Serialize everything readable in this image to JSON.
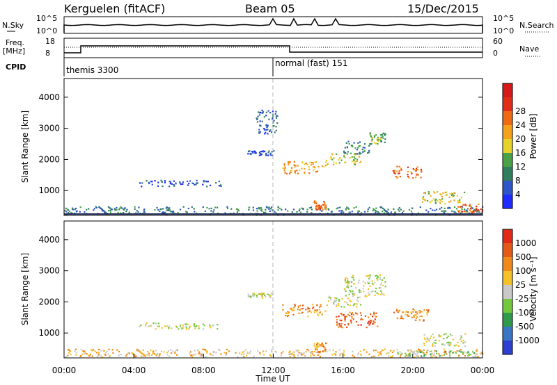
{
  "title": {
    "station": "Kerguelen (fitACF)",
    "beam": "Beam 05",
    "date": "15/Dec/2015"
  },
  "top_panels": {
    "nsky_label": "N.Sky",
    "nsearch_label": "N.Search",
    "nsky_ticks": [
      "10^5",
      "10^0"
    ],
    "nsearch_ticks": [
      "10^5",
      "10^0"
    ],
    "freq_label": "Freq.",
    "freq_unit": "[MHz]",
    "freq_ticks": [
      "18",
      "8"
    ],
    "nave_label": "Nave",
    "nave_ticks": [
      "60",
      "0"
    ],
    "cpid_label": "CPID",
    "cpid_segments": [
      {
        "label": "themis 3300",
        "start_hour": 0,
        "end_hour": 12
      },
      {
        "label": "normal (fast) 151",
        "start_hour": 12,
        "end_hour": 24
      }
    ]
  },
  "chart_data": [
    {
      "type": "heatmap",
      "name": "power",
      "ylabel": "Slant Range [km]",
      "xlim": [
        0,
        24
      ],
      "ylim": [
        200,
        4600
      ],
      "yticks": [
        "1000",
        "2000",
        "3000",
        "4000"
      ],
      "colorbar": {
        "label": "Power [dB]",
        "ticks": [
          "4",
          "8",
          "12",
          "16",
          "20",
          "24",
          "28"
        ],
        "colors": [
          "#1f2cff",
          "#2f56c8",
          "#2f7f5f",
          "#49a346",
          "#e6d22a",
          "#f4a11b",
          "#f06a14",
          "#e02e1b",
          "#d61a1a"
        ]
      },
      "echo_regions": [
        {
          "t0": 0.0,
          "t1": 24.0,
          "r0": 250,
          "r1": 500,
          "level": 2
        },
        {
          "t0": 4.3,
          "t1": 9.0,
          "r0": 1150,
          "r1": 1350,
          "level": 1
        },
        {
          "t0": 10.5,
          "t1": 12.0,
          "r0": 2150,
          "r1": 2300,
          "level": 1
        },
        {
          "t0": 11.0,
          "t1": 12.2,
          "r0": 2800,
          "r1": 3600,
          "level": 1
        },
        {
          "t0": 12.5,
          "t1": 15.0,
          "r0": 1550,
          "r1": 1950,
          "level": 5
        },
        {
          "t0": 15.0,
          "t1": 17.0,
          "r0": 1850,
          "r1": 2200,
          "level": 4
        },
        {
          "t0": 16.0,
          "t1": 17.5,
          "r0": 2200,
          "r1": 2600,
          "level": 2
        },
        {
          "t0": 17.5,
          "t1": 18.4,
          "r0": 2500,
          "r1": 2900,
          "level": 3
        },
        {
          "t0": 14.3,
          "t1": 15.0,
          "r0": 400,
          "r1": 700,
          "level": 6
        },
        {
          "t0": 18.8,
          "t1": 20.5,
          "r0": 1400,
          "r1": 1800,
          "level": 6
        },
        {
          "t0": 20.5,
          "t1": 23.0,
          "r0": 600,
          "r1": 1000,
          "level": 4
        },
        {
          "t0": 22.5,
          "t1": 24.0,
          "r0": 300,
          "r1": 600,
          "level": 6
        }
      ]
    },
    {
      "type": "heatmap",
      "name": "velocity",
      "ylabel": "Slant Range [km]",
      "xlim": [
        0,
        24
      ],
      "ylim": [
        200,
        4600
      ],
      "yticks": [
        "1000",
        "2000",
        "3000",
        "4000"
      ],
      "xticks": [
        "00:00",
        "04:00",
        "08:00",
        "12:00",
        "16:00",
        "20:00",
        "00:00"
      ],
      "xlabel": "Time UT",
      "colorbar": {
        "label": "Velocity [m s⁻¹]",
        "ticks": [
          "1000",
          "500",
          "100",
          "25",
          "-25",
          "-100",
          "-500",
          "-1000"
        ],
        "colors": [
          "#2b3fd1",
          "#3a76c4",
          "#2f9a4a",
          "#74c83e",
          "#c9c9c9",
          "#f5c12a",
          "#f08a1c",
          "#e45a18",
          "#e12a1a"
        ]
      },
      "echo_regions": [
        {
          "t0": 0.0,
          "t1": 24.0,
          "r0": 250,
          "r1": 500,
          "level": 5
        },
        {
          "t0": 4.3,
          "t1": 9.0,
          "r0": 1150,
          "r1": 1350,
          "level": 4
        },
        {
          "t0": 10.5,
          "t1": 12.0,
          "r0": 2150,
          "r1": 2300,
          "level": 4
        },
        {
          "t0": 12.5,
          "t1": 15.0,
          "r0": 1550,
          "r1": 1950,
          "level": 6
        },
        {
          "t0": 15.0,
          "t1": 17.0,
          "r0": 1850,
          "r1": 2200,
          "level": 4
        },
        {
          "t0": 16.0,
          "t1": 18.4,
          "r0": 2200,
          "r1": 2900,
          "level": 4
        },
        {
          "t0": 14.3,
          "t1": 15.0,
          "r0": 400,
          "r1": 700,
          "level": 6
        },
        {
          "t0": 15.5,
          "t1": 18.0,
          "r0": 1200,
          "r1": 1700,
          "level": 7
        },
        {
          "t0": 18.8,
          "t1": 21.0,
          "r0": 1400,
          "r1": 1800,
          "level": 6
        },
        {
          "t0": 20.5,
          "t1": 23.0,
          "r0": 600,
          "r1": 1000,
          "level": 4
        },
        {
          "t0": 19.0,
          "t1": 24.0,
          "r0": 250,
          "r1": 450,
          "level": 3
        }
      ]
    }
  ]
}
